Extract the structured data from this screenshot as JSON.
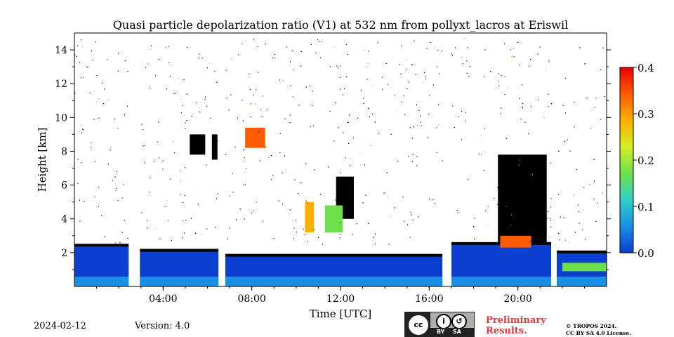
{
  "chart_data": {
    "type": "heatmap",
    "title": "Quasi particle depolarization ratio (V1) at 532 nm from pollyxt_lacros at Eriswil",
    "xlabel": "Time [UTC]",
    "ylabel": "Height [km]",
    "xlim_hours": [
      0,
      24
    ],
    "ylim_km": [
      0,
      15
    ],
    "x_ticks": [
      {
        "hour": 4,
        "label": "04:00"
      },
      {
        "hour": 8,
        "label": "08:00"
      },
      {
        "hour": 12,
        "label": "12:00"
      },
      {
        "hour": 16,
        "label": "16:00"
      },
      {
        "hour": 20,
        "label": "20:00"
      }
    ],
    "y_ticks": [
      {
        "km": 2,
        "label": "2"
      },
      {
        "km": 4,
        "label": "4"
      },
      {
        "km": 6,
        "label": "6"
      },
      {
        "km": 8,
        "label": "8"
      },
      {
        "km": 10,
        "label": "10"
      },
      {
        "km": 12,
        "label": "12"
      },
      {
        "km": 14,
        "label": "14"
      }
    ],
    "colorbar": {
      "range": [
        0.0,
        0.4
      ],
      "ticks": [
        {
          "value": 0.0,
          "label": "0.0"
        },
        {
          "value": 0.1,
          "label": "0.1"
        },
        {
          "value": 0.2,
          "label": "0.2"
        },
        {
          "value": 0.3,
          "label": "0.3"
        },
        {
          "value": 0.4,
          "label": "0.4"
        }
      ],
      "colormap": [
        "#0a3fd0",
        "#1a8fe6",
        "#2fd0c8",
        "#6ee04a",
        "#d6ee22",
        "#ffb000",
        "#ff5a00",
        "#e80000"
      ]
    },
    "data_gaps_hours": [
      [
        2.45,
        2.95
      ],
      [
        6.5,
        6.8
      ],
      [
        16.6,
        17.0
      ],
      [
        21.5,
        21.75
      ]
    ],
    "boundary_layer_top_km": [
      {
        "start": 0.0,
        "end": 2.45,
        "top": 2.4
      },
      {
        "start": 2.95,
        "end": 6.5,
        "top": 2.1
      },
      {
        "start": 6.8,
        "end": 16.6,
        "top": 1.8
      },
      {
        "start": 17.0,
        "end": 21.5,
        "top": 2.5
      },
      {
        "start": 21.75,
        "end": 24.0,
        "top": 2.0
      }
    ],
    "features": [
      {
        "kind": "cloud",
        "start": 5.2,
        "end": 5.9,
        "bottom": 7.8,
        "top": 9.0,
        "depol": "saturated"
      },
      {
        "kind": "cloud",
        "start": 6.2,
        "end": 6.45,
        "bottom": 7.5,
        "top": 9.0,
        "depol": "saturated"
      },
      {
        "kind": "cloud",
        "start": 19.1,
        "end": 21.3,
        "bottom": 2.6,
        "top": 7.8,
        "depol": "saturated"
      },
      {
        "kind": "cloud",
        "start": 11.8,
        "end": 12.6,
        "bottom": 4.0,
        "top": 6.5,
        "depol": "saturated"
      },
      {
        "kind": "cirrus",
        "start": 7.7,
        "end": 8.6,
        "bottom": 8.2,
        "top": 9.4,
        "depol": 0.32
      },
      {
        "kind": "aerosol_layer",
        "start": 10.4,
        "end": 10.8,
        "bottom": 3.2,
        "top": 5.0,
        "depol": 0.28
      },
      {
        "kind": "aerosol_layer",
        "start": 11.3,
        "end": 12.1,
        "bottom": 3.2,
        "top": 4.8,
        "depol": 0.17
      },
      {
        "kind": "aerosol_layer",
        "start": 19.2,
        "end": 20.6,
        "bottom": 2.3,
        "top": 3.0,
        "depol": 0.35
      },
      {
        "kind": "aerosol_layer",
        "start": 22.0,
        "end": 24.0,
        "bottom": 0.9,
        "top": 1.4,
        "depol": 0.16
      }
    ]
  },
  "footer": {
    "date": "2024-02-12",
    "version": "Version: 4.0",
    "preliminary": "Preliminary Results.",
    "copyright_line1": "© TROPOS 2024.",
    "copyright_line2": "CC BY SA 4.0 License."
  },
  "license_badge": {
    "cc": "cc",
    "by": "BY",
    "sa": "SA"
  }
}
